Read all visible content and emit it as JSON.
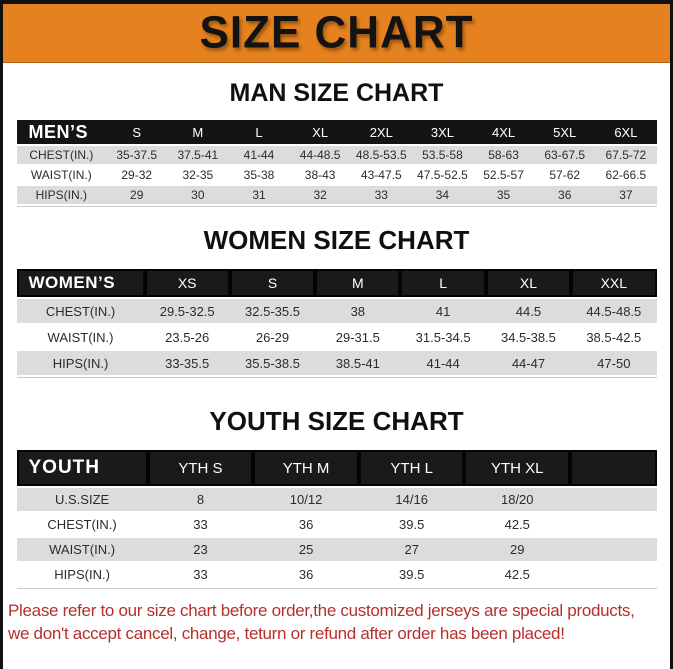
{
  "banner": {
    "title": "SIZE CHART"
  },
  "colors": {
    "banner_bg": "#E5821F",
    "table_header_bg": "#141414",
    "row_shade": "#DCDCDC",
    "footer_red": "#B5302C"
  },
  "sections": [
    {
      "heading": "MAN SIZE CHART",
      "table": {
        "header": [
          "MEN’S",
          "S",
          "M",
          "L",
          "XL",
          "2XL",
          "3XL",
          "4XL",
          "5XL",
          "6XL"
        ],
        "rows": [
          {
            "label": "CHEST(IN.)",
            "values": [
              "35-37.5",
              "37.5-41",
              "41-44",
              "44-48.5",
              "48.5-53.5",
              "53.5-58",
              "58-63",
              "63-67.5",
              "67.5-72"
            ]
          },
          {
            "label": "WAIST(IN.)",
            "values": [
              "29-32",
              "32-35",
              "35-38",
              "38-43",
              "43-47.5",
              "47.5-52.5",
              "52.5-57",
              "57-62",
              "62-66.5"
            ]
          },
          {
            "label": "HIPS(IN.)",
            "values": [
              "29",
              "30",
              "31",
              "32",
              "33",
              "34",
              "35",
              "36",
              "37"
            ]
          }
        ]
      }
    },
    {
      "heading": "WOMEN SIZE CHART",
      "table": {
        "header": [
          "WOMEN’S",
          "XS",
          "S",
          "M",
          "L",
          "XL",
          "XXL"
        ],
        "rows": [
          {
            "label": "CHEST(IN.)",
            "values": [
              "29.5-32.5",
              "32.5-35.5",
              "38",
              "41",
              "44.5",
              "44.5-48.5"
            ]
          },
          {
            "label": "WAIST(IN.)",
            "values": [
              "23.5-26",
              "26-29",
              "29-31.5",
              "31.5-34.5",
              "34.5-38.5",
              "38.5-42.5"
            ]
          },
          {
            "label": "HIPS(IN.)",
            "values": [
              "33-35.5",
              "35.5-38.5",
              "38.5-41",
              "41-44",
              "44-47",
              "47-50"
            ]
          }
        ]
      }
    },
    {
      "heading": "YOUTH SIZE CHART",
      "table": {
        "header": [
          "YOUTH",
          "YTH S",
          "YTH M",
          "YTH L",
          "YTH XL"
        ],
        "rows": [
          {
            "label": "U.S.SIZE",
            "values": [
              "8",
              "10/12",
              "14/16",
              "18/20"
            ]
          },
          {
            "label": "CHEST(IN.)",
            "values": [
              "33",
              "36",
              "39.5",
              "42.5"
            ]
          },
          {
            "label": "WAIST(IN.)",
            "values": [
              "23",
              "25",
              "27",
              "29"
            ]
          },
          {
            "label": "HIPS(IN.)",
            "values": [
              "33",
              "36",
              "39.5",
              "42.5"
            ]
          }
        ]
      }
    }
  ],
  "footer": {
    "line1": "Please refer to our size chart before order,the customized jerseys are special products,",
    "line2": "we don't accept cancel, change, teturn or refund after order has been placed!"
  }
}
